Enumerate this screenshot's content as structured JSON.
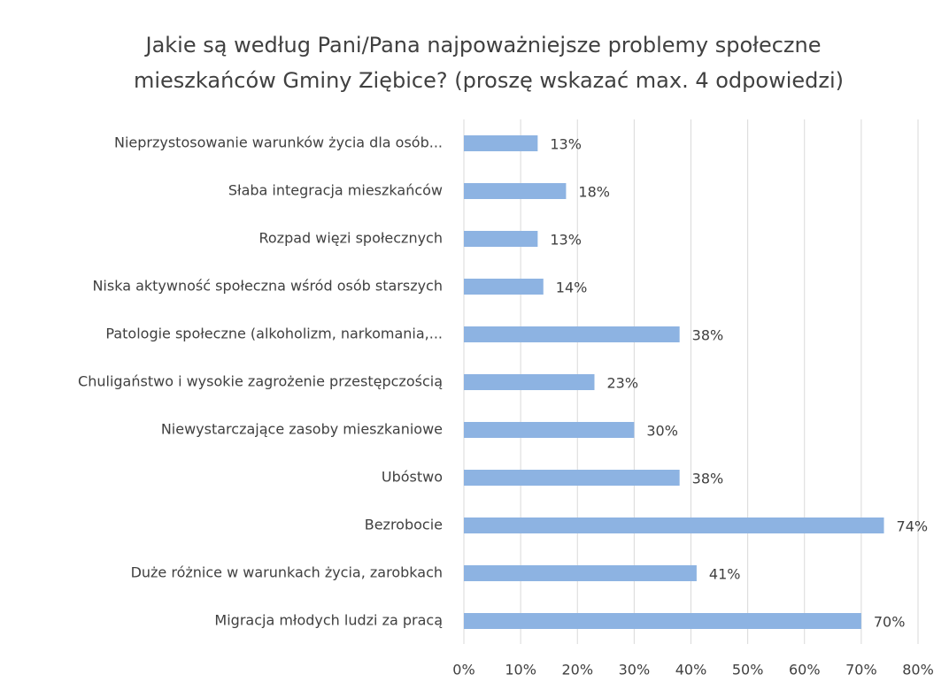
{
  "chart_data": {
    "type": "bar",
    "orientation": "horizontal",
    "title": [
      "Jakie są według Pani/Pana najpoważniejsze problemy społeczne",
      "mieszkańców Gminy Ziębice? (proszę wskazać max. 4 odpowiedzi)"
    ],
    "categories": [
      "Nieprzystosowanie warunków życia dla osób...",
      "Słaba integracja mieszkańców",
      "Rozpad więzi społecznych",
      "Niska aktywność społeczna wśród osób starszych",
      "Patologie społeczne (alkoholizm, narkomania,...",
      "Chuligaństwo i wysokie zagrożenie przestępczością",
      "Niewystarczające zasoby mieszkaniowe",
      "Ubóstwo",
      "Bezrobocie",
      "Duże różnice w warunkach życia, zarobkach",
      "Migracja młodych ludzi za pracą"
    ],
    "values": [
      13,
      18,
      13,
      14,
      38,
      23,
      30,
      38,
      74,
      41,
      70
    ],
    "value_labels": [
      "13%",
      "18%",
      "13%",
      "14%",
      "38%",
      "23%",
      "30%",
      "38%",
      "74%",
      "41%",
      "70%"
    ],
    "color": "#8db3e2",
    "xlim": [
      0,
      80
    ],
    "xticks": [
      {
        "value": 0,
        "label": "0%"
      },
      {
        "value": 10,
        "label": "10%"
      },
      {
        "value": 20,
        "label": "20%"
      },
      {
        "value": 30,
        "label": "30%"
      },
      {
        "value": 40,
        "label": "40%"
      },
      {
        "value": 50,
        "label": "50%"
      },
      {
        "value": 60,
        "label": "60%"
      },
      {
        "value": 70,
        "label": "70%"
      },
      {
        "value": 80,
        "label": "80%"
      }
    ],
    "grid": true
  }
}
